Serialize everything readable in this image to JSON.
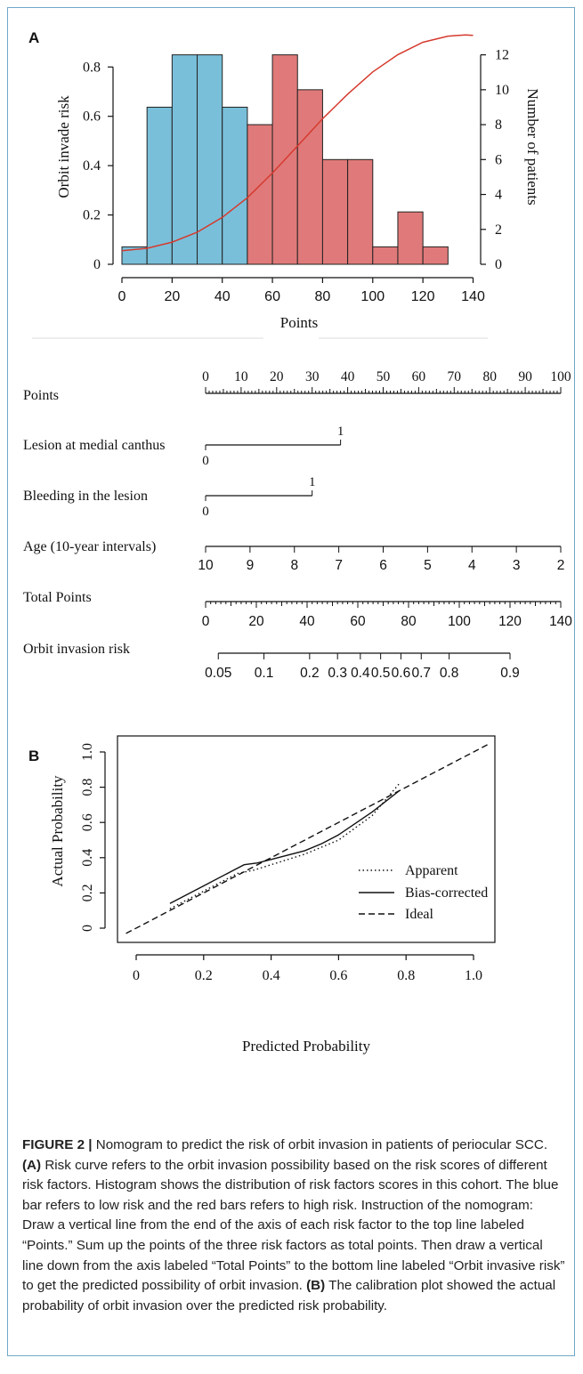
{
  "panel_a": {
    "label": "A",
    "chart_data": {
      "type": "bar",
      "xlabel": "Points",
      "ylabel_left": "Orbit invade risk",
      "ylabel_right": "Number of patients",
      "x_ticks": [
        "0",
        "20",
        "40",
        "60",
        "80",
        "100",
        "120",
        "140"
      ],
      "y_left_ticks": [
        "0",
        "0.2",
        "0.4",
        "0.6",
        "0.8"
      ],
      "y_right_ticks": [
        "0",
        "2",
        "4",
        "6",
        "8",
        "10",
        "12"
      ],
      "xlim": [
        0,
        140
      ],
      "ylim_left": [
        0,
        0.92
      ],
      "ylim_right": [
        0,
        13
      ],
      "bin_width": 10,
      "low_risk_color": "#79bfd9",
      "high_risk_color": "#e07a7a",
      "curve_color": "#d63a2e",
      "bins": [
        {
          "start": 0,
          "count": 1,
          "group": "low"
        },
        {
          "start": 10,
          "count": 9,
          "group": "low"
        },
        {
          "start": 20,
          "count": 12,
          "group": "low"
        },
        {
          "start": 30,
          "count": 12,
          "group": "low"
        },
        {
          "start": 40,
          "count": 9,
          "group": "low"
        },
        {
          "start": 50,
          "count": 8,
          "group": "high"
        },
        {
          "start": 60,
          "count": 12,
          "group": "high"
        },
        {
          "start": 70,
          "count": 10,
          "group": "high"
        },
        {
          "start": 80,
          "count": 6,
          "group": "high"
        },
        {
          "start": 90,
          "count": 6,
          "group": "high"
        },
        {
          "start": 100,
          "count": 1,
          "group": "high"
        },
        {
          "start": 110,
          "count": 3,
          "group": "high"
        },
        {
          "start": 120,
          "count": 1,
          "group": "high"
        }
      ],
      "risk_curve": {
        "x": [
          0,
          10,
          20,
          30,
          40,
          50,
          60,
          70,
          80,
          90,
          100,
          110,
          120,
          130,
          137,
          140
        ],
        "y": [
          0.055,
          0.065,
          0.09,
          0.13,
          0.19,
          0.27,
          0.37,
          0.48,
          0.59,
          0.69,
          0.78,
          0.85,
          0.9,
          0.925,
          0.93,
          0.928
        ]
      }
    }
  },
  "nomogram": {
    "rows": [
      {
        "label": "Points"
      },
      {
        "label": "Lesion at medial canthus",
        "tick_top": "1",
        "tick_bottom": "0"
      },
      {
        "label": "Bleeding in the lesion",
        "tick_top": "1",
        "tick_bottom": "0"
      },
      {
        "label": "Age (10-year intervals)"
      },
      {
        "label": "Total Points"
      },
      {
        "label": "Orbit invasion risk"
      }
    ],
    "points_ticks": [
      "0",
      "10",
      "20",
      "30",
      "40",
      "50",
      "60",
      "70",
      "80",
      "90",
      "100"
    ],
    "lesion_points": 38,
    "bleeding_points": 30,
    "age_ticks": [
      "10",
      "9",
      "8",
      "7",
      "6",
      "5",
      "4",
      "3",
      "2"
    ],
    "total_ticks": [
      "0",
      "20",
      "40",
      "60",
      "80",
      "100",
      "120",
      "140"
    ],
    "risk_ticks": [
      {
        "label": "0.05",
        "total": 5
      },
      {
        "label": "0.1",
        "total": 23
      },
      {
        "label": "0.2",
        "total": 41
      },
      {
        "label": "0.3",
        "total": 52
      },
      {
        "label": "0.4",
        "total": 61
      },
      {
        "label": "0.5",
        "total": 69
      },
      {
        "label": "0.6",
        "total": 77
      },
      {
        "label": "0.7",
        "total": 85
      },
      {
        "label": "0.8",
        "total": 96
      },
      {
        "label": "0.9",
        "total": 120
      }
    ]
  },
  "panel_b": {
    "label": "B",
    "chart_data": {
      "type": "line",
      "xlabel": "Predicted Probability",
      "ylabel": "Actual Probability",
      "x_ticks": [
        "0",
        "0.2",
        "0.4",
        "0.6",
        "0.8",
        "1.0"
      ],
      "y_ticks": [
        "0",
        "0.2",
        "0.4",
        "0.6",
        "0.8",
        "1.0"
      ],
      "xlim": [
        0,
        1.05
      ],
      "ylim": [
        0,
        1.05
      ],
      "legend": [
        "Apparent",
        "Bias-corrected",
        "Ideal"
      ],
      "series": [
        {
          "name": "Apparent",
          "style": "dotted",
          "x": [
            0.1,
            0.2,
            0.3,
            0.35,
            0.4,
            0.5,
            0.55,
            0.6,
            0.7,
            0.78
          ],
          "y": [
            0.11,
            0.21,
            0.31,
            0.33,
            0.36,
            0.42,
            0.46,
            0.5,
            0.64,
            0.82
          ]
        },
        {
          "name": "Bias-corrected",
          "style": "solid",
          "x": [
            0.1,
            0.2,
            0.28,
            0.32,
            0.36,
            0.4,
            0.5,
            0.55,
            0.6,
            0.7,
            0.78
          ],
          "y": [
            0.14,
            0.24,
            0.32,
            0.36,
            0.37,
            0.39,
            0.44,
            0.48,
            0.53,
            0.66,
            0.78
          ]
        },
        {
          "name": "Ideal",
          "style": "dashed",
          "x": [
            -0.03,
            1.05
          ],
          "y": [
            -0.03,
            1.05
          ]
        }
      ]
    }
  },
  "caption": {
    "figure_label": "FIGURE 2 |",
    "intro": " Nomogram to predict the risk of orbit invasion in patients of periocular SCC. ",
    "a_label": "(A)",
    "a_text": " Risk curve refers to the orbit invasion possibility based on the risk scores of different risk factors. Histogram shows the distribution of risk factors scores in this cohort. The blue bar refers to low risk and the red bars refers to high risk. Instruction of the nomogram: Draw a vertical line from the end of the axis of each risk factor to the top line labeled “Points.” Sum up the points of the three risk factors as total points. Then draw a vertical line down from the axis labeled “Total Points” to the bottom line labeled “Orbit invasive risk” to get the predicted possibility of orbit invasion. ",
    "b_label": "(B)",
    "b_text": " The calibration plot showed the actual probability of orbit invasion over the predicted risk probability."
  }
}
